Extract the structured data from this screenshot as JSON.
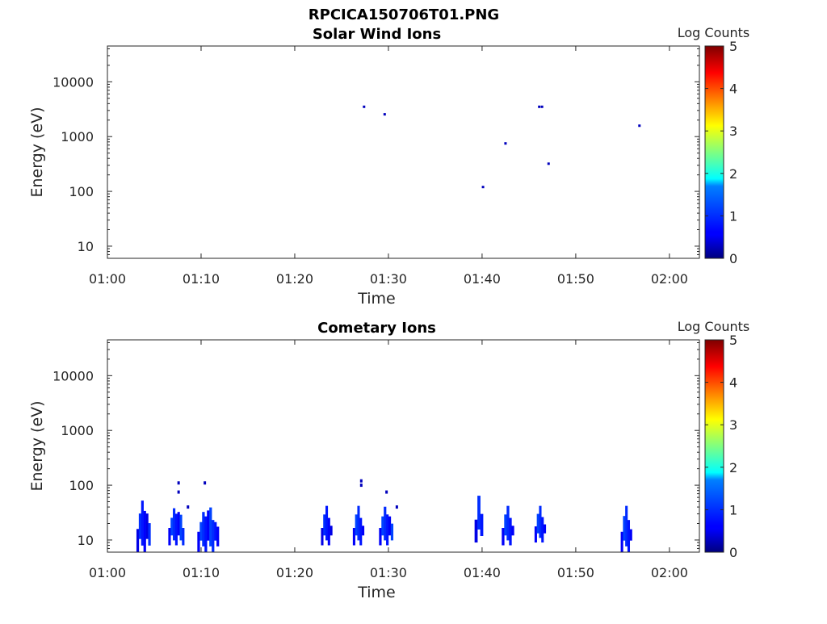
{
  "figure_title": "RPCICA150706T01.PNG",
  "chart_data": [
    {
      "type": "heatmap",
      "title": "Solar Wind Ions",
      "xlabel": "Time",
      "ylabel": "Energy (eV)",
      "x_ticks": [
        "01:00",
        "01:10",
        "01:20",
        "01:30",
        "01:40",
        "01:50",
        "02:00"
      ],
      "x_range_min": [
        0,
        63.2
      ],
      "y_scale": "log",
      "y_ticks": [
        "10",
        "100",
        "1000",
        "10000"
      ],
      "ylim": [
        6,
        45000
      ],
      "colorbar": {
        "label": "Log Counts",
        "ticks": [
          "0",
          "1",
          "2",
          "3",
          "4",
          "5"
        ],
        "range": [
          0,
          5
        ],
        "colormap": "jet"
      },
      "cells": [
        {
          "t": 27.4,
          "e": 3500,
          "v": 0.3
        },
        {
          "t": 29.6,
          "e": 2550,
          "v": 0.3
        },
        {
          "t": 40.1,
          "e": 120,
          "v": 0.3
        },
        {
          "t": 42.5,
          "e": 750,
          "v": 0.3
        },
        {
          "t": 46.1,
          "e": 3500,
          "v": 0.3
        },
        {
          "t": 46.4,
          "e": 3500,
          "v": 0.3
        },
        {
          "t": 47.1,
          "e": 320,
          "v": 0.3
        },
        {
          "t": 56.8,
          "e": 1580,
          "v": 0.3
        }
      ]
    },
    {
      "type": "heatmap",
      "title": "Cometary Ions",
      "xlabel": "Time",
      "ylabel": "Energy (eV)",
      "x_ticks": [
        "01:00",
        "01:10",
        "01:20",
        "01:30",
        "01:40",
        "01:50",
        "02:00"
      ],
      "x_range_min": [
        0,
        63.2
      ],
      "y_scale": "log",
      "y_ticks": [
        "10",
        "100",
        "1000",
        "10000"
      ],
      "ylim": [
        6,
        45000
      ],
      "colorbar": {
        "label": "Log Counts",
        "ticks": [
          "0",
          "1",
          "2",
          "3",
          "4",
          "5"
        ],
        "range": [
          0,
          5
        ],
        "colormap": "jet"
      },
      "bursts": [
        {
          "t0": 3.1,
          "t1": 4.6,
          "e_top": 55,
          "e_bottom": 6,
          "v": 0.5
        },
        {
          "t0": 6.5,
          "t1": 8.2,
          "e_top": 42,
          "e_bottom": 8,
          "v": 0.6
        },
        {
          "t0": 9.6,
          "t1": 11.9,
          "e_top": 42,
          "e_bottom": 6,
          "v": 0.6
        },
        {
          "t0": 22.8,
          "t1": 24.0,
          "e_top": 42,
          "e_bottom": 8,
          "v": 0.5
        },
        {
          "t0": 26.2,
          "t1": 27.4,
          "e_top": 42,
          "e_bottom": 8,
          "v": 0.6
        },
        {
          "t0": 29.0,
          "t1": 30.5,
          "e_top": 42,
          "e_bottom": 8,
          "v": 0.6
        },
        {
          "t0": 39.2,
          "t1": 40.1,
          "e_top": 80,
          "e_bottom": 9,
          "v": 0.5
        },
        {
          "t0": 42.1,
          "t1": 43.4,
          "e_top": 42,
          "e_bottom": 8,
          "v": 0.6
        },
        {
          "t0": 45.6,
          "t1": 46.8,
          "e_top": 42,
          "e_bottom": 9,
          "v": 0.6
        },
        {
          "t0": 54.8,
          "t1": 56.0,
          "e_top": 42,
          "e_bottom": 6,
          "v": 0.6
        }
      ],
      "specks": [
        {
          "t": 7.6,
          "e": 110,
          "v": 0.3
        },
        {
          "t": 10.4,
          "e": 110,
          "v": 0.3
        },
        {
          "t": 27.1,
          "e": 120,
          "v": 0.3
        },
        {
          "t": 27.1,
          "e": 100,
          "v": 0.3
        },
        {
          "t": 29.8,
          "e": 75,
          "v": 0.3
        },
        {
          "t": 30.9,
          "e": 40,
          "v": 0.3
        },
        {
          "t": 7.6,
          "e": 75,
          "v": 0.3
        },
        {
          "t": 8.6,
          "e": 40,
          "v": 0.3
        }
      ]
    }
  ]
}
